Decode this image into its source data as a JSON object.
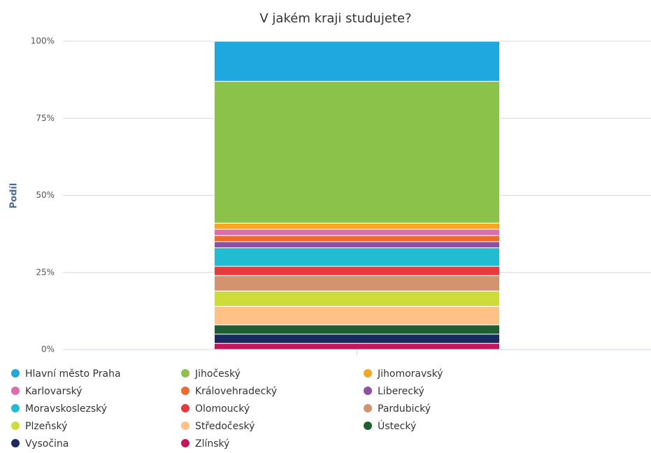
{
  "chart_data": {
    "type": "stacked_bar_percent",
    "title": "V jakém kraji studujete?",
    "y_label": "Podíl",
    "categories": [
      null
    ],
    "ylim": [
      0,
      100
    ],
    "yticks": [
      {
        "value": 0,
        "label": "0%"
      },
      {
        "value": 25,
        "label": "25%"
      },
      {
        "value": 50,
        "label": "50%"
      },
      {
        "value": 75,
        "label": "75%"
      },
      {
        "value": 100,
        "label": "100%"
      }
    ],
    "grid": true,
    "series": [
      {
        "name": "Hlavní město Praha",
        "color": "#1fa8e0",
        "values": [
          13
        ]
      },
      {
        "name": "Jihočeský",
        "color": "#8bc34a",
        "values": [
          46
        ]
      },
      {
        "name": "Jihomoravský",
        "color": "#f5a623",
        "values": [
          2
        ]
      },
      {
        "name": "Karlovarský",
        "color": "#e06bb0",
        "values": [
          2
        ]
      },
      {
        "name": "Královehradecký",
        "color": "#f06a2a",
        "values": [
          2
        ]
      },
      {
        "name": "Liberecký",
        "color": "#8e4fa6",
        "values": [
          2
        ]
      },
      {
        "name": "Moravskoslezský",
        "color": "#1fbcd2",
        "values": [
          6
        ]
      },
      {
        "name": "Olomoucký",
        "color": "#e83a3a",
        "values": [
          3
        ]
      },
      {
        "name": "Pardubický",
        "color": "#d4936f",
        "values": [
          5
        ]
      },
      {
        "name": "Plzeňský",
        "color": "#cddc39",
        "values": [
          5
        ]
      },
      {
        "name": "Středočeský",
        "color": "#ffc185",
        "values": [
          6
        ]
      },
      {
        "name": "Ústecký",
        "color": "#1e5e30",
        "values": [
          3
        ]
      },
      {
        "name": "Vysočina",
        "color": "#1b2a5e",
        "values": [
          3
        ]
      },
      {
        "name": "Zlínský",
        "color": "#c2185b",
        "values": [
          2
        ]
      }
    ]
  }
}
